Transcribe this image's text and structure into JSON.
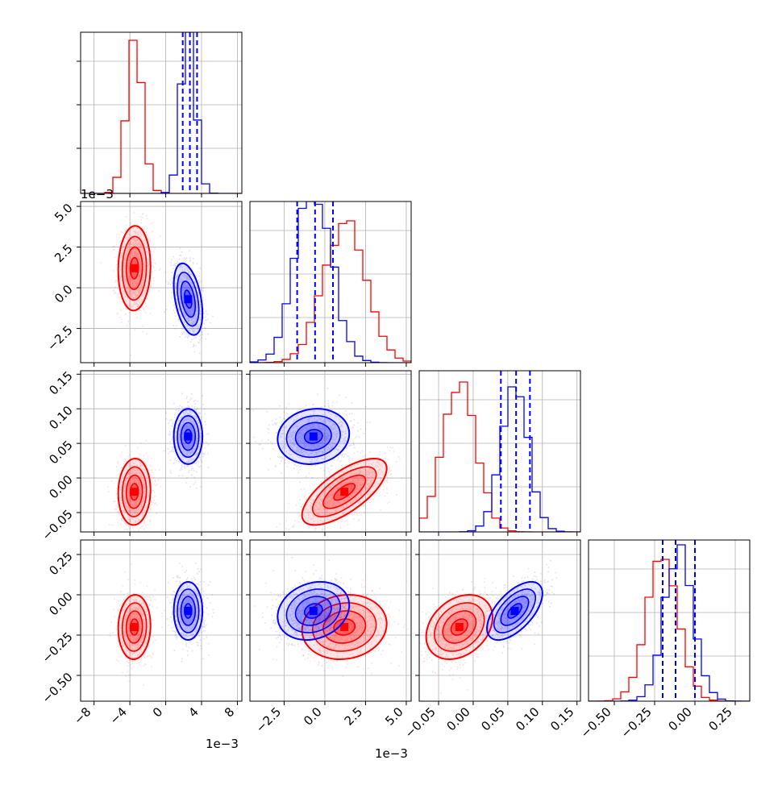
{
  "colors": {
    "red": "#ff0000",
    "blue": "#0000ff",
    "grid": "#b0b0b0",
    "axis": "#000000"
  },
  "offset_labels": {
    "x0": "1e−3",
    "x1": "1e−3",
    "y1": "1e−3"
  },
  "chart_data": {
    "type": "corner",
    "n_parameters": 4,
    "grid": true,
    "series": [
      {
        "name": "",
        "color": "#ff0000",
        "means": [
          -0.0035,
          0.0012,
          -0.02,
          -0.2
        ],
        "sigmas": [
          0.0009,
          0.0013,
          0.024,
          0.1
        ],
        "correlations": [
          [
            0,
            1,
            0.05
          ],
          [
            0,
            2,
            0.05
          ],
          [
            0,
            3,
            0.05
          ],
          [
            1,
            2,
            0.7
          ],
          [
            1,
            3,
            0.1
          ],
          [
            2,
            3,
            0.3
          ]
        ],
        "hist_peak": [
          0.95,
          0.88,
          0.93,
          0.88
        ]
      },
      {
        "name": "",
        "color": "#0000ff",
        "means": [
          0.0025,
          -0.0007,
          0.06,
          -0.1
        ],
        "sigmas": [
          0.0008,
          0.0011,
          0.02,
          0.09
        ],
        "correlations": [
          [
            0,
            1,
            -0.4
          ],
          [
            0,
            2,
            0.0
          ],
          [
            0,
            3,
            0.0
          ],
          [
            1,
            2,
            0.1
          ],
          [
            1,
            3,
            0.2
          ],
          [
            2,
            3,
            0.6
          ]
        ],
        "quantiles": [
          [
            0.0019,
            0.0027,
            0.0035
          ],
          [
            -0.0017,
            -0.0006,
            0.0005
          ],
          [
            0.04,
            0.062,
            0.082
          ],
          [
            -0.2,
            -0.12,
            0.0
          ]
        ],
        "hist_peak": [
          1.0,
          1.0,
          0.9,
          0.97
        ]
      }
    ],
    "axes": [
      {
        "lim": [
          -0.0095,
          0.0085
        ],
        "ticks": [
          -0.008,
          -0.004,
          0.0,
          0.004,
          0.008
        ],
        "tick_labels": [
          "−8",
          "−4",
          "0",
          "4",
          "8"
        ]
      },
      {
        "lim": [
          -0.0046,
          0.0053
        ],
        "ticks": [
          -0.0025,
          0.0,
          0.0025,
          0.005
        ],
        "tick_labels": [
          "−2.5",
          "0.0",
          "2.5",
          "5.0"
        ]
      },
      {
        "lim": [
          -0.078,
          0.155
        ],
        "ticks": [
          -0.05,
          0.0,
          0.05,
          0.1,
          0.15
        ],
        "tick_labels": [
          "−0.05",
          "0.00",
          "0.05",
          "0.10",
          "0.15"
        ]
      },
      {
        "lim": [
          -0.66,
          0.34
        ],
        "ticks": [
          -0.5,
          -0.25,
          0.0,
          0.25
        ],
        "tick_labels": [
          "−0.50",
          "−0.25",
          "0.00",
          "0.25"
        ]
      }
    ]
  }
}
